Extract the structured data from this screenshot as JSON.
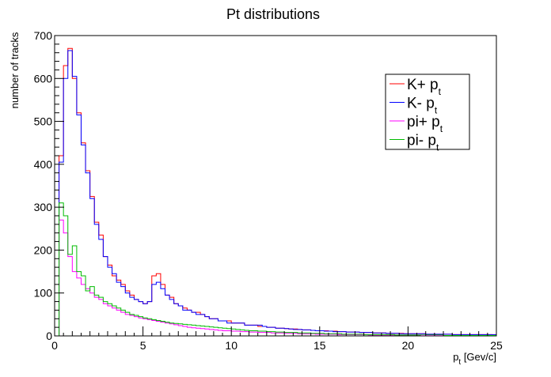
{
  "chart_data": {
    "type": "histogram",
    "title": "Pt distributions",
    "xlabel_main": "p",
    "xlabel_sub": "t",
    "xlabel_unit": " [Gev/c]",
    "ylabel": "number of tracks",
    "xlim": [
      0,
      25
    ],
    "ylim": [
      0,
      700
    ],
    "x_ticks": [
      0,
      5,
      10,
      15,
      20,
      25
    ],
    "y_ticks": [
      0,
      100,
      200,
      300,
      400,
      500,
      600,
      700
    ],
    "x_tick_labels": [
      "0",
      "5",
      "10",
      "15",
      "20",
      "25"
    ],
    "y_tick_labels": [
      "0",
      "100",
      "200",
      "300",
      "400",
      "500",
      "600",
      "700"
    ],
    "bin_width": 0.25,
    "legend_position": "top-right",
    "series": [
      {
        "name_main": "K+ p",
        "name_sub": "t",
        "color": "#ff0000",
        "values": [
          0,
          420,
          630,
          670,
          600,
          520,
          450,
          385,
          325,
          265,
          235,
          185,
          165,
          140,
          130,
          120,
          105,
          95,
          85,
          80,
          75,
          80,
          140,
          145,
          120,
          95,
          90,
          75,
          70,
          65,
          60,
          55,
          55,
          50,
          45,
          40,
          40,
          35,
          35,
          35,
          30,
          30,
          30,
          25,
          25,
          25,
          22,
          22,
          20,
          20,
          18,
          18,
          17,
          16,
          16,
          15,
          14,
          14,
          13,
          12,
          12,
          12,
          11,
          11,
          10,
          10,
          9,
          9,
          9,
          8,
          8,
          8,
          7,
          7,
          7,
          6,
          6,
          6,
          6,
          5,
          5,
          5,
          5,
          5,
          4,
          4,
          4,
          4,
          4,
          4,
          3,
          3,
          3,
          3,
          3,
          3,
          3,
          3,
          3,
          2
        ]
      },
      {
        "name_main": "K- p",
        "name_sub": "t",
        "color": "#0000ff",
        "values": [
          0,
          405,
          600,
          665,
          605,
          515,
          445,
          380,
          320,
          260,
          225,
          185,
          160,
          145,
          125,
          115,
          100,
          90,
          85,
          80,
          75,
          80,
          120,
          125,
          110,
          95,
          85,
          75,
          70,
          60,
          60,
          55,
          50,
          50,
          45,
          40,
          40,
          35,
          35,
          30,
          30,
          30,
          30,
          25,
          25,
          25,
          25,
          22,
          20,
          20,
          18,
          18,
          17,
          16,
          15,
          15,
          14,
          14,
          13,
          12,
          12,
          11,
          11,
          10,
          10,
          10,
          9,
          9,
          9,
          8,
          8,
          8,
          7,
          7,
          7,
          6,
          6,
          6,
          5,
          5,
          5,
          5,
          5,
          5,
          4,
          4,
          4,
          4,
          4,
          4,
          3,
          3,
          3,
          3,
          3,
          3,
          3,
          3,
          3,
          3
        ]
      },
      {
        "name_main": "pi+ p",
        "name_sub": "t",
        "color": "#ff00ff",
        "values": [
          0,
          270,
          240,
          185,
          150,
          135,
          120,
          110,
          100,
          90,
          85,
          75,
          70,
          65,
          60,
          55,
          50,
          48,
          45,
          42,
          40,
          38,
          36,
          34,
          32,
          30,
          28,
          26,
          24,
          22,
          20,
          19,
          18,
          17,
          16,
          15,
          14,
          13,
          12,
          12,
          11,
          11,
          10,
          10,
          9,
          9,
          8,
          8,
          8,
          7,
          7,
          7,
          6,
          6,
          6,
          5,
          5,
          5,
          5,
          4,
          4,
          4,
          4,
          4,
          3,
          3,
          3,
          3,
          3,
          3,
          3,
          2,
          2,
          2,
          2,
          2,
          2,
          2,
          2,
          2,
          2,
          2,
          2,
          1,
          1,
          1,
          1,
          1,
          1,
          1,
          1,
          1,
          1,
          1,
          1,
          1,
          1,
          1,
          1,
          1
        ]
      },
      {
        "name_main": "pi- p",
        "name_sub": "t",
        "color": "#00bb00",
        "values": [
          0,
          310,
          280,
          190,
          210,
          150,
          140,
          105,
          115,
          95,
          90,
          80,
          75,
          70,
          65,
          60,
          55,
          50,
          48,
          45,
          42,
          40,
          38,
          36,
          34,
          32,
          30,
          29,
          28,
          27,
          26,
          25,
          24,
          23,
          22,
          21,
          20,
          19,
          18,
          17,
          16,
          15,
          14,
          13,
          12,
          12,
          11,
          11,
          10,
          10,
          9,
          9,
          8,
          8,
          8,
          7,
          7,
          7,
          6,
          6,
          6,
          5,
          5,
          5,
          5,
          4,
          4,
          4,
          4,
          4,
          3,
          3,
          3,
          3,
          3,
          3,
          3,
          2,
          2,
          2,
          2,
          2,
          2,
          2,
          2,
          2,
          2,
          2,
          1,
          1,
          1,
          1,
          1,
          1,
          1,
          1,
          1,
          1,
          1,
          1
        ]
      }
    ]
  }
}
